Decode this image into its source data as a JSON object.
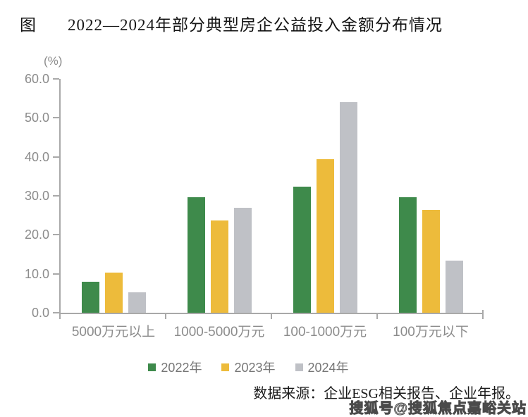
{
  "title": {
    "prefix": "图",
    "text": "2022—2024年部分典型房企公益投入金额分布情况"
  },
  "chart_data": {
    "type": "bar",
    "title": "图 2022—2024年部分典型房企公益投入金额分布情况",
    "categories": [
      "5000万元以上",
      "1000-5000万元",
      "100-1000万元",
      "100万元以下"
    ],
    "series": [
      {
        "name": "2022年",
        "color": "#3E8A4B",
        "values": [
          7.9,
          29.6,
          32.4,
          29.6
        ]
      },
      {
        "name": "2023年",
        "color": "#EDBB3B",
        "values": [
          10.3,
          23.7,
          39.4,
          26.3
        ]
      },
      {
        "name": "2024年",
        "color": "#BFC1C6",
        "values": [
          5.3,
          27.0,
          54.0,
          13.4
        ]
      }
    ],
    "xlabel": "",
    "ylabel": "(%)",
    "ylim": [
      0,
      60
    ],
    "y_tick_step": 10,
    "y_ticks": [
      "0.0",
      "10.0",
      "20.0",
      "30.0",
      "40.0",
      "50.0",
      "60.0"
    ],
    "grid": false,
    "legend_position": "bottom"
  },
  "unit_label": "(%)",
  "source": "数据来源：企业ESG相关报告、企业年报。",
  "watermark": "搜狐号@搜狐焦点嘉峪关站",
  "colors": {
    "axis": "#a9a9a9",
    "tick_label": "#8c8c8c",
    "legend_text": "#767676",
    "title_text": "#141414"
  }
}
